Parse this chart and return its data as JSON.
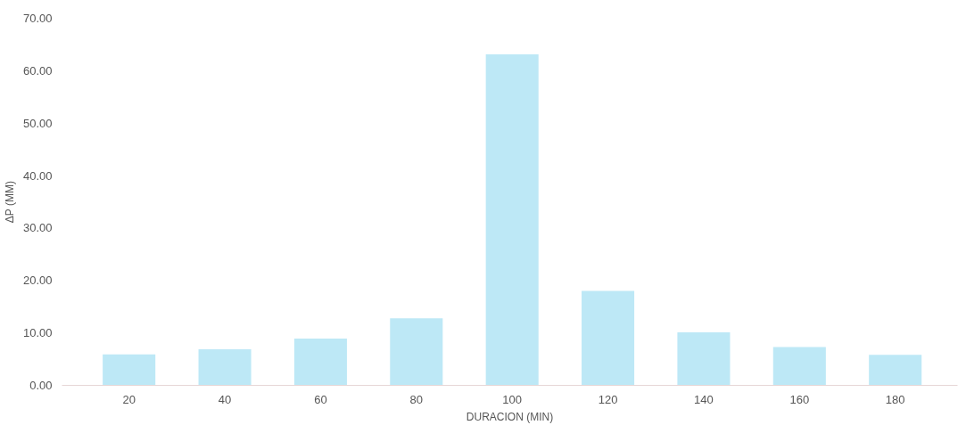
{
  "chart_data": {
    "type": "bar",
    "xlabel": "DURACION (MIN)",
    "ylabel": "ΔP (MM)",
    "categories": [
      "20",
      "40",
      "60",
      "80",
      "100",
      "120",
      "140",
      "160",
      "180"
    ],
    "values": [
      5.9,
      6.9,
      8.9,
      12.8,
      63.1,
      18.0,
      10.1,
      7.3,
      5.8
    ],
    "color": "#bde8f6",
    "ylim": [
      0,
      70
    ],
    "yticks": [
      {
        "value": 0,
        "label": "0.00"
      },
      {
        "value": 10,
        "label": "10.00"
      },
      {
        "value": 20,
        "label": "20.00"
      },
      {
        "value": 30,
        "label": "30.00"
      },
      {
        "value": 40,
        "label": "40.00"
      },
      {
        "value": 50,
        "label": "50.00"
      },
      {
        "value": 60,
        "label": "60.00"
      },
      {
        "value": 70,
        "label": "70.00"
      }
    ],
    "grid": false
  }
}
